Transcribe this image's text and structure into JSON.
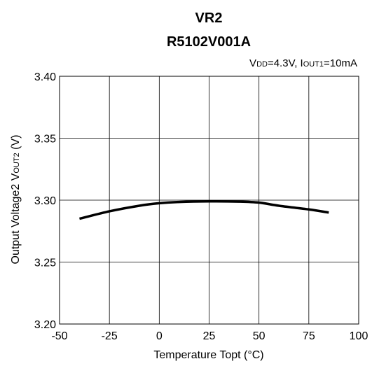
{
  "chart_data": {
    "type": "line",
    "title": "VR2",
    "subtitle": "R5102V001A",
    "condition": {
      "vdd_main": "V",
      "vdd_sub": "DD",
      "vdd_val": "=4.3V, ",
      "iout_main": "I",
      "iout_sub": "OUT1",
      "iout_val": "=10mA"
    },
    "xlabel": "Temperature Topt (°C)",
    "ylabel": {
      "main": "Output Voltage2 V",
      "sub": "OUT2",
      "unit": " (V)"
    },
    "xlim": [
      -50,
      100
    ],
    "ylim": [
      3.2,
      3.4
    ],
    "xticks": [
      -50,
      -25,
      0,
      25,
      50,
      75,
      100
    ],
    "xtick_labels": [
      "-50",
      "-25",
      "0",
      "25",
      "50",
      "75",
      "100"
    ],
    "yticks": [
      3.2,
      3.25,
      3.3,
      3.35,
      3.4
    ],
    "ytick_labels": [
      "3.20",
      "3.25",
      "3.30",
      "3.35",
      "3.40"
    ],
    "grid": true,
    "series": [
      {
        "color": "#000000",
        "x": [
          -40,
          -25,
          -10,
          0,
          10,
          25,
          40,
          50,
          60,
          75,
          85
        ],
        "y": [
          3.285,
          3.291,
          3.2955,
          3.2975,
          3.2985,
          3.299,
          3.2988,
          3.298,
          3.2955,
          3.2925,
          3.29
        ]
      }
    ]
  }
}
